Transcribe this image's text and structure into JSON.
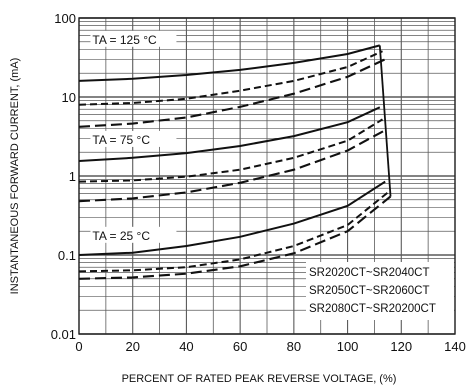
{
  "chart_data": {
    "type": "line",
    "title": "",
    "xlabel": "PERCENT OF RATED PEAK REVERSE VOLTAGE, (%)",
    "ylabel": "INSTANTANEOUS FORWARD CURRENT, (mA)",
    "xlim": [
      0,
      140
    ],
    "ylim": [
      0.01,
      100
    ],
    "yscale": "log",
    "grid": true,
    "x_ticks": [
      "0",
      "20",
      "40",
      "60",
      "80",
      "100",
      "120",
      "140"
    ],
    "y_ticks": [
      "0.01",
      "0.1",
      "1",
      "10",
      "100"
    ],
    "legend_position": "bottom-right",
    "legend": [
      "SR2020CT~SR2040CT",
      "SR2050CT~SR2060CT",
      "SR2080CT~SR20200CT"
    ],
    "annotations": [
      {
        "text": "TA = 125 °C",
        "at_x": 5,
        "at_y": 50
      },
      {
        "text": "TA = 75 °C",
        "at_x": 5,
        "at_y": 2.7
      },
      {
        "text": "TA = 25 °C",
        "at_x": 5,
        "at_y": 0.165
      }
    ],
    "groups": [
      {
        "temperature": "125 °C",
        "series": [
          {
            "legend_index": 0,
            "x": [
              0,
              20,
              40,
              60,
              80,
              100,
              112
            ],
            "y": [
              16,
              17,
              19,
              22,
              27,
              35,
              45
            ]
          },
          {
            "legend_index": 1,
            "x": [
              0,
              20,
              40,
              60,
              80,
              100,
              113
            ],
            "y": [
              8,
              8.4,
              9.5,
              12,
              16,
              24,
              38
            ]
          },
          {
            "legend_index": 2,
            "x": [
              0,
              20,
              40,
              60,
              80,
              100,
              114
            ],
            "y": [
              4.2,
              4.6,
              5.5,
              7.5,
              11,
              18,
              30
            ]
          }
        ]
      },
      {
        "temperature": "75 °C",
        "series": [
          {
            "legend_index": 0,
            "x": [
              0,
              20,
              40,
              60,
              80,
              100,
              112
            ],
            "y": [
              1.55,
              1.7,
              1.95,
              2.4,
              3.2,
              4.8,
              7.4
            ]
          },
          {
            "legend_index": 1,
            "x": [
              0,
              20,
              40,
              60,
              80,
              100,
              113
            ],
            "y": [
              0.85,
              0.88,
              0.98,
              1.2,
              1.7,
              2.8,
              5.2
            ]
          },
          {
            "legend_index": 2,
            "x": [
              0,
              20,
              40,
              60,
              80,
              100,
              114
            ],
            "y": [
              0.48,
              0.52,
              0.62,
              0.82,
              1.2,
              2.1,
              3.8
            ]
          }
        ]
      },
      {
        "temperature": "25 °C",
        "series": [
          {
            "legend_index": 0,
            "x": [
              0,
              20,
              40,
              60,
              80,
              100,
              114
            ],
            "y": [
              0.1,
              0.107,
              0.13,
              0.17,
              0.25,
              0.42,
              0.85
            ]
          },
          {
            "legend_index": 1,
            "x": [
              0,
              20,
              40,
              60,
              80,
              100,
              115
            ],
            "y": [
              0.062,
              0.064,
              0.07,
              0.088,
              0.13,
              0.24,
              0.62
            ]
          },
          {
            "legend_index": 2,
            "x": [
              0,
              20,
              40,
              60,
              80,
              100,
              116
            ],
            "y": [
              0.05,
              0.052,
              0.058,
              0.072,
              0.105,
              0.2,
              0.55
            ]
          }
        ]
      }
    ],
    "connector": {
      "x": [
        112,
        116
      ],
      "y": [
        45,
        0.55
      ]
    }
  }
}
